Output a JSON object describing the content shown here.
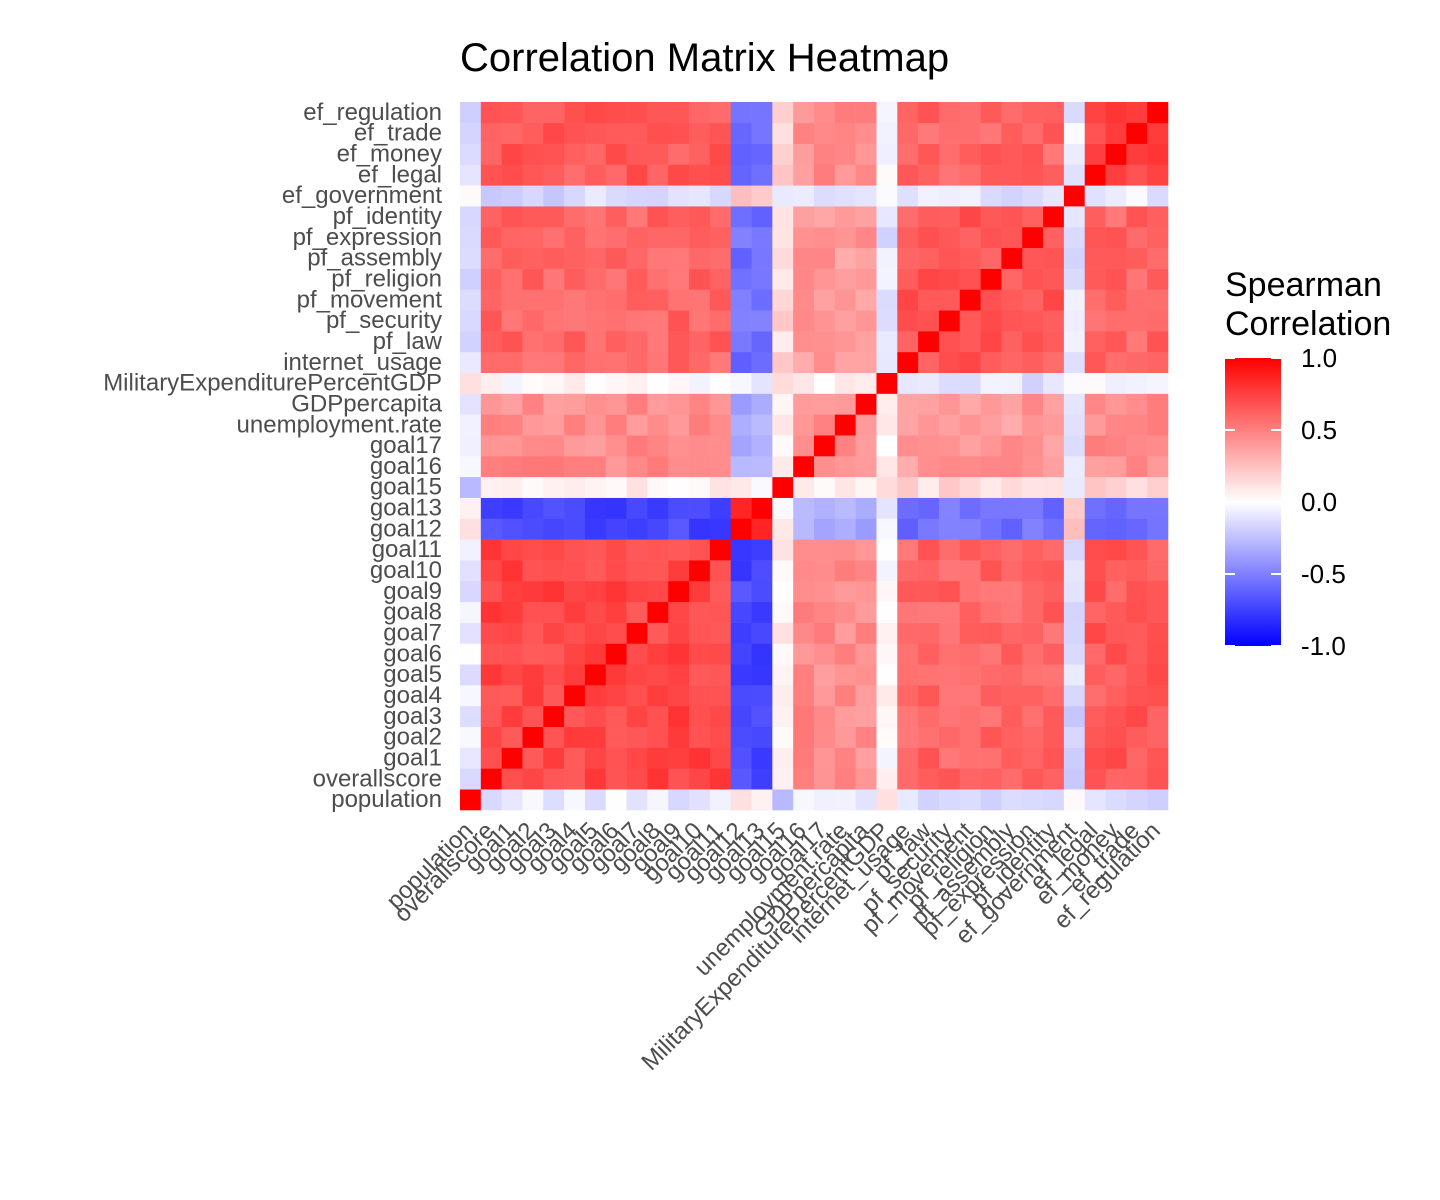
{
  "chart_data": {
    "type": "heatmap",
    "title": "Correlation Matrix Heatmap",
    "xlabel": "",
    "ylabel": "",
    "variables": [
      "population",
      "overallscore",
      "goal1",
      "goal2",
      "goal3",
      "goal4",
      "goal5",
      "goal6",
      "goal7",
      "goal8",
      "goal9",
      "goal10",
      "goal11",
      "goal12",
      "goal13",
      "goal15",
      "goal16",
      "goal17",
      "unemployment.rate",
      "GDPpercapita",
      "MilitaryExpenditurePercentGDP",
      "internet_usage",
      "pf_law",
      "pf_security",
      "pf_movement",
      "pf_religion",
      "pf_assembly",
      "pf_expression",
      "pf_identity",
      "ef_government",
      "ef_legal",
      "ef_money",
      "ef_trade",
      "ef_regulation"
    ],
    "x": [
      "population",
      "overallscore",
      "goal1",
      "goal2",
      "goal3",
      "goal4",
      "goal5",
      "goal6",
      "goal7",
      "goal8",
      "goal9",
      "goal10",
      "goal11",
      "goal12",
      "goal13",
      "goal15",
      "goal16",
      "goal17",
      "unemployment.rate",
      "GDPpercapita",
      "MilitaryExpenditurePercentGDP",
      "internet_usage",
      "pf_law",
      "pf_security",
      "pf_movement",
      "pf_religion",
      "pf_assembly",
      "pf_expression",
      "pf_identity",
      "ef_government",
      "ef_legal",
      "ef_money",
      "ef_trade",
      "ef_regulation"
    ],
    "y": [
      "population",
      "overallscore",
      "goal1",
      "goal2",
      "goal3",
      "goal4",
      "goal5",
      "goal6",
      "goal7",
      "goal8",
      "goal9",
      "goal10",
      "goal11",
      "goal12",
      "goal13",
      "goal15",
      "goal16",
      "goal17",
      "unemployment.rate",
      "GDPpercapita",
      "MilitaryExpenditurePercentGDP",
      "internet_usage",
      "pf_law",
      "pf_security",
      "pf_movement",
      "pf_religion",
      "pf_assembly",
      "pf_expression",
      "pf_identity",
      "ef_government",
      "ef_legal",
      "ef_money",
      "ef_trade",
      "ef_regulation"
    ],
    "groups": {
      "pop": [
        0
      ],
      "sdg": [
        1,
        2,
        3,
        4,
        5,
        6,
        7,
        8,
        9,
        10,
        11,
        12
      ],
      "neg": [
        13,
        14
      ],
      "g15": [
        15
      ],
      "mid": [
        16,
        17,
        18,
        19
      ],
      "mil": [
        20
      ],
      "pf": [
        21,
        22,
        23,
        24,
        25,
        26,
        27,
        28
      ],
      "efgov": [
        29
      ],
      "ef": [
        30,
        31,
        32,
        33
      ]
    },
    "legend_title": [
      "Spearman",
      "Correlation"
    ],
    "scale": {
      "min": -1.0,
      "max": 1.0,
      "low": "#0000FF",
      "mid": "#FFFFFF",
      "high": "#FF0000"
    },
    "legend_ticks": [
      "1.0",
      "0.5",
      "0.0",
      "-0.5",
      "-1.0"
    ],
    "legend_tick_values": [
      1.0,
      0.5,
      0.0,
      -0.5,
      -1.0
    ]
  }
}
